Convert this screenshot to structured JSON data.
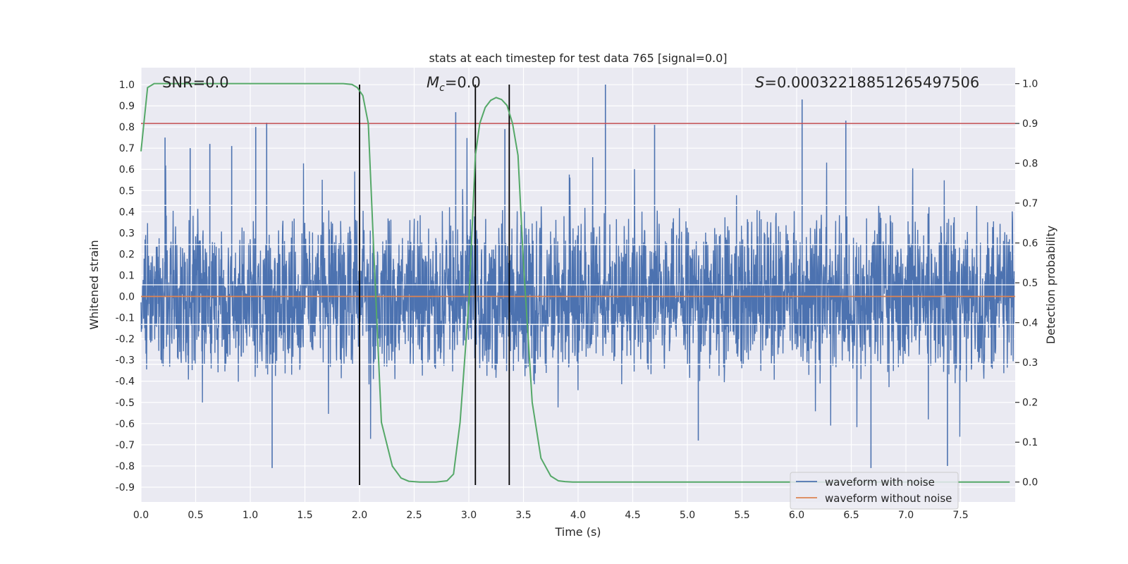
{
  "chart_data": {
    "type": "line",
    "title": "stats at each timestep for test data 765 [signal=0.0]",
    "xlabel": "Time (s)",
    "ylabel": "Whitened strain",
    "y2label": "Detection probability",
    "xlim": [
      0.0,
      8.0
    ],
    "ylim": [
      -0.97,
      1.08
    ],
    "y2lim": [
      -0.05,
      1.04
    ],
    "xticks": [
      "0.0",
      "0.5",
      "1.0",
      "1.5",
      "2.0",
      "2.5",
      "3.0",
      "3.5",
      "4.0",
      "4.5",
      "5.0",
      "5.5",
      "6.0",
      "6.5",
      "7.0",
      "7.5"
    ],
    "yticks": [
      "1.0",
      "0.9",
      "0.8",
      "0.7",
      "0.6",
      "0.5",
      "0.4",
      "0.3",
      "0.2",
      "0.1",
      "0.0",
      "-0.1",
      "-0.2",
      "-0.3",
      "-0.4",
      "-0.5",
      "-0.6",
      "-0.7",
      "-0.8",
      "-0.9"
    ],
    "y2ticks": [
      "1.0",
      "0.9",
      "0.8",
      "0.7",
      "0.6",
      "0.5",
      "0.4",
      "0.3",
      "0.2",
      "0.1",
      "0.0"
    ],
    "grid": true,
    "legend_position": "lower-right",
    "annotations": {
      "snr": "SNR=0.0",
      "mc_sym": "M",
      "mc_sub": "c",
      "mc_val": "=0.0",
      "s_sym": "S",
      "s_val": "=0.00032218851265497506"
    },
    "series": [
      {
        "name": "waveform with noise",
        "axis": "left",
        "color": "#4c72b0",
        "description_of_shape": "dense noise, envelope about ±0.45 with spikes",
        "spikes_x": [
          0.22,
          0.45,
          0.63,
          0.83,
          1.05,
          1.15,
          1.2,
          2.88,
          3.33,
          4.25,
          4.7,
          5.1,
          6.05,
          6.45,
          6.68,
          7.38
        ],
        "spikes_y": [
          0.75,
          0.7,
          0.72,
          0.71,
          0.8,
          0.82,
          -0.81,
          0.87,
          0.79,
          1.0,
          0.81,
          -0.68,
          0.93,
          0.83,
          -0.81,
          -0.8
        ]
      },
      {
        "name": "waveform without noise",
        "axis": "left",
        "color": "#dd8452",
        "x": [
          0.0,
          8.0
        ],
        "y": [
          0.0,
          0.0
        ]
      },
      {
        "name": "detection probability",
        "axis": "right",
        "color": "#55a868",
        "x": [
          0.0,
          0.06,
          0.12,
          0.2,
          0.4,
          1.0,
          1.5,
          1.85,
          1.93,
          1.98,
          2.03,
          2.08,
          2.13,
          2.2,
          2.3,
          2.38,
          2.45,
          2.55,
          2.7,
          2.8,
          2.86,
          2.92,
          3.0,
          3.06,
          3.1,
          3.15,
          3.2,
          3.25,
          3.3,
          3.35,
          3.4,
          3.45,
          3.5,
          3.58,
          3.66,
          3.75,
          3.82,
          3.88,
          3.95,
          4.1,
          5.0,
          6.0,
          7.0,
          7.95
        ],
        "y": [
          0.83,
          0.99,
          1.0,
          1.0,
          1.0,
          1.0,
          1.0,
          1.0,
          0.998,
          0.99,
          0.97,
          0.9,
          0.58,
          0.15,
          0.04,
          0.01,
          0.002,
          0.0,
          0.0,
          0.003,
          0.02,
          0.15,
          0.45,
          0.82,
          0.9,
          0.94,
          0.958,
          0.965,
          0.96,
          0.945,
          0.9,
          0.82,
          0.55,
          0.2,
          0.06,
          0.015,
          0.003,
          0.001,
          0.0,
          0.0,
          0.0,
          0.0,
          0.0,
          0.0
        ]
      }
    ],
    "threshold_line": {
      "axis": "right",
      "y": 0.9,
      "color": "#c44e52"
    },
    "vertical_markers": {
      "x": [
        2.0,
        3.06,
        3.37
      ],
      "ymin": -0.89,
      "ymax": 1.0,
      "color": "#000000"
    },
    "white_hlines": [
      0.43,
      0.245,
      0.055,
      -0.132,
      -0.32
    ]
  }
}
